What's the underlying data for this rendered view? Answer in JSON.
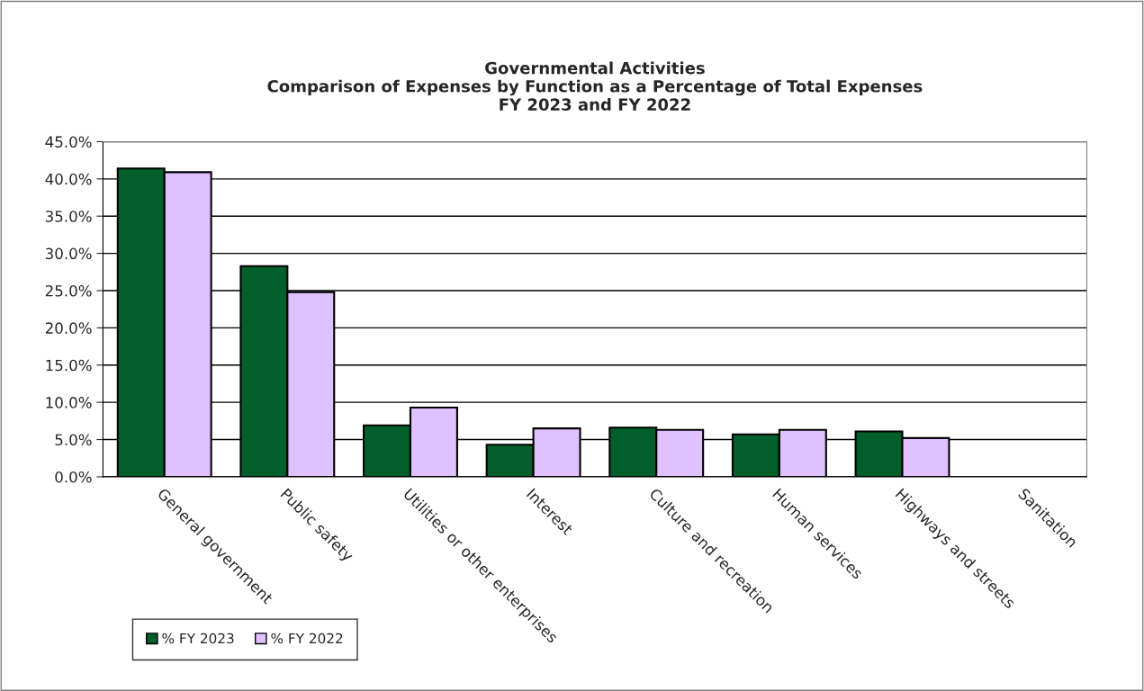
{
  "chart_data": {
    "type": "bar",
    "title": "Governmental Activities\nComparison of Expenses by Function as a Percentage of Total Expenses\nFY 2023 and FY 2022",
    "categories": [
      "General government",
      "Public safety",
      "Utilities or other enterprises",
      "Interest",
      "Culture and recreation",
      "Human services",
      "Highways and streets",
      "Sanitation"
    ],
    "series": [
      {
        "name": "% FY 2023",
        "color": "#005f2b",
        "values": [
          41.4,
          28.3,
          6.9,
          4.3,
          6.6,
          5.7,
          6.1,
          0
        ]
      },
      {
        "name": "% FY 2022",
        "color": "#dfc1ff",
        "values": [
          40.9,
          24.8,
          9.3,
          6.5,
          6.3,
          6.3,
          5.2,
          0
        ]
      }
    ],
    "ylim": [
      0,
      45
    ],
    "yticks": [
      {
        "value": 0,
        "label": "0.0%"
      },
      {
        "value": 5,
        "label": "5.0%"
      },
      {
        "value": 10,
        "label": "10.0%"
      },
      {
        "value": 15,
        "label": "15.0%"
      },
      {
        "value": 20,
        "label": "20.0%"
      },
      {
        "value": 25,
        "label": "25.0%"
      },
      {
        "value": 30,
        "label": "30.0%"
      },
      {
        "value": 35,
        "label": "35.0%"
      },
      {
        "value": 40,
        "label": "40.0%"
      },
      {
        "value": 45,
        "label": "45.0%"
      }
    ],
    "grid": "y",
    "legend": "bottom left"
  }
}
